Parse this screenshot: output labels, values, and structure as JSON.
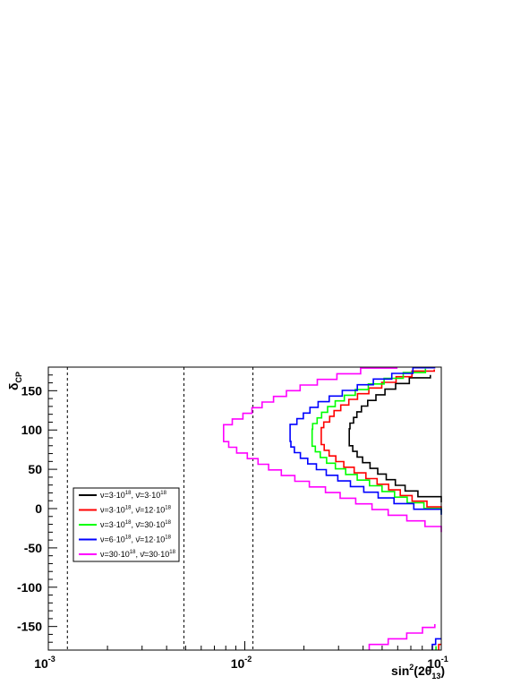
{
  "chart_data": {
    "type": "line",
    "title": "",
    "xlabel": {
      "base": "sin",
      "sup": "2",
      "mid": "(2θ",
      "sub": "13",
      "end": ")"
    },
    "ylabel": {
      "main": "δ",
      "sub": "CP"
    },
    "xscale": "log",
    "xlim": [
      0.001,
      0.1
    ],
    "ylim": [
      -180,
      180
    ],
    "x_tick_labels": [
      {
        "value": 0.001,
        "base": "10",
        "exp": "-3"
      },
      {
        "value": 0.01,
        "base": "10",
        "exp": "-2"
      },
      {
        "value": 0.1,
        "base": "10",
        "exp": "-1"
      }
    ],
    "y_ticks": [
      150,
      100,
      50,
      0,
      -50,
      -100,
      -150
    ],
    "y_tick_labels": [
      "150",
      "100",
      "50",
      "0",
      "-50",
      "-100",
      "-150"
    ],
    "vertical_dashed_lines": [
      0.00125,
      0.0049,
      0.011
    ],
    "grid": false,
    "legend_position": "middle-left",
    "series": [
      {
        "name": "ν=3·10^18, ν̄=3·10^18",
        "legend": {
          "a": "3·10",
          "ae": "18",
          "b": "3·10",
          "be": "18"
        },
        "color": "#000000",
        "min_x": 0.034,
        "upper": [
          [
            0.1,
            170
          ],
          [
            0.07,
            160
          ],
          [
            0.056,
            150
          ],
          [
            0.048,
            140
          ],
          [
            0.042,
            130
          ],
          [
            0.038,
            120
          ],
          [
            0.036,
            110
          ],
          [
            0.034,
            100
          ]
        ],
        "lower": [
          [
            0.034,
            80
          ],
          [
            0.036,
            70
          ],
          [
            0.039,
            60
          ],
          [
            0.044,
            50
          ],
          [
            0.05,
            40
          ],
          [
            0.058,
            30
          ],
          [
            0.068,
            20
          ],
          [
            0.082,
            12
          ],
          [
            0.1,
            8
          ]
        ],
        "bottom": []
      },
      {
        "name": "ν=3·10^18, ν̄=12·10^18",
        "legend": {
          "a": "3·10",
          "ae": "18",
          "b": "12·10",
          "be": "18"
        },
        "color": "#ff0000",
        "min_x": 0.0245,
        "upper": [
          [
            0.1,
            177
          ],
          [
            0.075,
            170
          ],
          [
            0.058,
            160
          ],
          [
            0.046,
            150
          ],
          [
            0.038,
            140
          ],
          [
            0.033,
            130
          ],
          [
            0.029,
            120
          ],
          [
            0.027,
            110
          ],
          [
            0.0245,
            100
          ]
        ],
        "lower": [
          [
            0.0245,
            80
          ],
          [
            0.026,
            70
          ],
          [
            0.029,
            60
          ],
          [
            0.033,
            50
          ],
          [
            0.04,
            40
          ],
          [
            0.048,
            30
          ],
          [
            0.058,
            20
          ],
          [
            0.07,
            10
          ],
          [
            0.085,
            2
          ],
          [
            0.1,
            -5
          ]
        ],
        "bottom": [
          [
            0.097,
            -180
          ],
          [
            0.1,
            -172
          ]
        ]
      },
      {
        "name": "ν=3·10^18, ν̄=30·10^18",
        "legend": {
          "a": "3·10",
          "ae": "18",
          "b": "30·10",
          "be": "18"
        },
        "color": "#00ff00",
        "min_x": 0.022,
        "upper": [
          [
            0.1,
            178
          ],
          [
            0.08,
            172
          ],
          [
            0.06,
            164
          ],
          [
            0.046,
            155
          ],
          [
            0.037,
            145
          ],
          [
            0.031,
            135
          ],
          [
            0.027,
            125
          ],
          [
            0.0245,
            115
          ],
          [
            0.022,
            100
          ]
        ],
        "lower": [
          [
            0.022,
            78
          ],
          [
            0.0235,
            68
          ],
          [
            0.026,
            58
          ],
          [
            0.03,
            48
          ],
          [
            0.036,
            38
          ],
          [
            0.044,
            28
          ],
          [
            0.054,
            18
          ],
          [
            0.066,
            8
          ],
          [
            0.082,
            0
          ],
          [
            0.1,
            -7
          ]
        ],
        "bottom": [
          [
            0.094,
            -180
          ],
          [
            0.1,
            -175
          ]
        ]
      },
      {
        "name": "ν=6·10^18, ν̄=12·10^18",
        "legend": {
          "a": "6·10",
          "ae": "18",
          "b": "12·10",
          "be": "18"
        },
        "color": "#0000ff",
        "min_x": 0.017,
        "upper": [
          [
            0.095,
            180
          ],
          [
            0.08,
            175
          ],
          [
            0.062,
            168
          ],
          [
            0.048,
            160
          ],
          [
            0.037,
            150
          ],
          [
            0.029,
            140
          ],
          [
            0.024,
            130
          ],
          [
            0.021,
            120
          ],
          [
            0.019,
            110
          ],
          [
            0.017,
            100
          ]
        ],
        "lower": [
          [
            0.017,
            80
          ],
          [
            0.018,
            70
          ],
          [
            0.02,
            60
          ],
          [
            0.023,
            50
          ],
          [
            0.027,
            40
          ],
          [
            0.033,
            30
          ],
          [
            0.041,
            20
          ],
          [
            0.052,
            10
          ],
          [
            0.065,
            2
          ],
          [
            0.082,
            -4
          ],
          [
            0.1,
            -8
          ]
        ],
        "bottom": [
          [
            0.09,
            -180
          ],
          [
            0.094,
            -172
          ],
          [
            0.1,
            -165
          ]
        ]
      },
      {
        "name": "ν=30·10^18, ν̄=30·10^18",
        "legend": {
          "a": "30·10",
          "ae": "18",
          "b": "30·10",
          "be": "18"
        },
        "color": "#ff00ff",
        "min_x": 0.0078,
        "upper": [
          [
            0.065,
            180
          ],
          [
            0.048,
            176
          ],
          [
            0.036,
            170
          ],
          [
            0.027,
            162
          ],
          [
            0.02,
            152
          ],
          [
            0.016,
            142
          ],
          [
            0.013,
            132
          ],
          [
            0.011,
            122
          ],
          [
            0.0095,
            112
          ],
          [
            0.0082,
            104
          ],
          [
            0.0078,
            100
          ]
        ],
        "lower": [
          [
            0.0078,
            85
          ],
          [
            0.0085,
            75
          ],
          [
            0.0095,
            68
          ],
          [
            0.011,
            60
          ],
          [
            0.013,
            50
          ],
          [
            0.016,
            40
          ],
          [
            0.02,
            30
          ],
          [
            0.026,
            20
          ],
          [
            0.033,
            10
          ],
          [
            0.043,
            0
          ],
          [
            0.056,
            -10
          ],
          [
            0.072,
            -18
          ],
          [
            0.088,
            -25
          ],
          [
            0.1,
            -30
          ]
        ],
        "bottom": [
          [
            0.043,
            -180
          ],
          [
            0.055,
            -172
          ],
          [
            0.07,
            -164
          ],
          [
            0.085,
            -156
          ],
          [
            0.1,
            -147
          ]
        ]
      }
    ]
  }
}
